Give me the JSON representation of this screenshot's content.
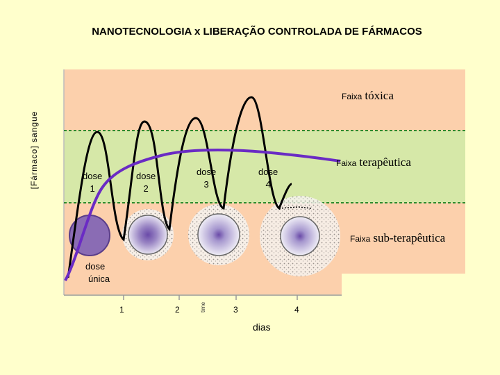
{
  "title": "NANOTECNOLOGIA x LIBERAÇÃO CONTROLADA DE FÁRMACOS",
  "y_axis_label": "[Fármaco] sangue",
  "x_axis_label": "dias",
  "time_label": "time",
  "ticks": [
    "1",
    "2",
    "3",
    "4"
  ],
  "zones": {
    "toxic": {
      "prefix": "Faixa",
      "name": "tóxica",
      "color": "#fcd0ac"
    },
    "therapeutic": {
      "prefix": "Faixa",
      "name": "terapêutica",
      "color": "#d6e8a8"
    },
    "subtherapeutic": {
      "prefix": "Faixa",
      "name": "sub-terapêutica",
      "color": "#fcd0ac"
    }
  },
  "doses": [
    {
      "word": "dose",
      "num": "1"
    },
    {
      "word": "dose",
      "num": "2"
    },
    {
      "word": "dose",
      "num": "3"
    },
    {
      "word": "dose",
      "num": "4"
    }
  ],
  "single_dose": {
    "line1": "dose",
    "line2": "única"
  },
  "colors": {
    "pulse_curve": "#000000",
    "controlled_curve": "#6a2bc4",
    "threshold_line": "#2e8b2e"
  }
}
